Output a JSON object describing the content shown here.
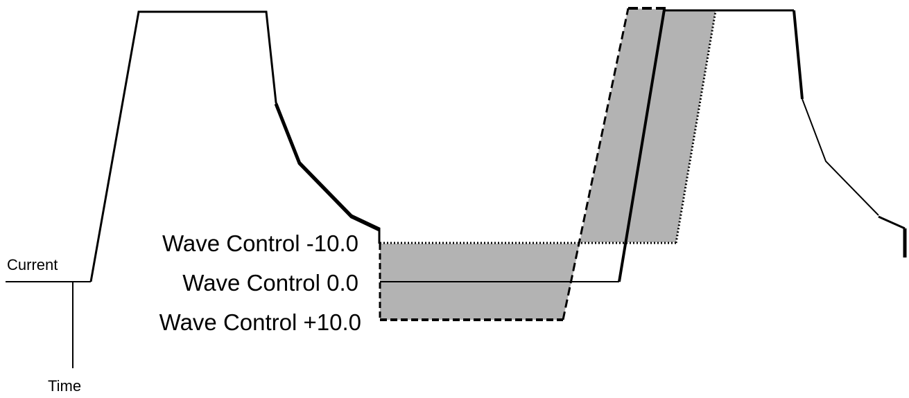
{
  "diagram": {
    "axis_labels": {
      "vertical": "Current",
      "horizontal": "Time"
    },
    "wave_labels": {
      "minus": "Wave Control -10.0",
      "zero": "Wave Control 0.0",
      "plus": "Wave Control +10.0"
    },
    "colors": {
      "stroke": "#000000",
      "shading": "#b3b3b3",
      "background": "#ffffff"
    }
  }
}
